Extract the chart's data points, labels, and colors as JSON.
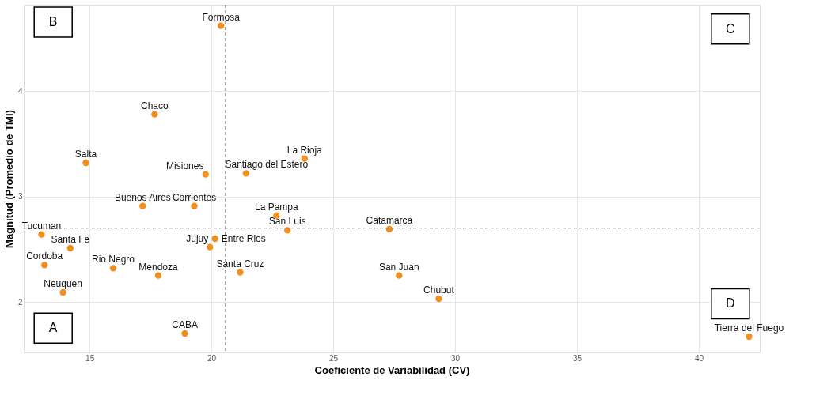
{
  "chart_data": {
    "type": "scatter",
    "xlabel": "Coeficiente de Variabilidad (CV)",
    "ylabel": "Magnitud (Promedio de TMI)",
    "x": [
      20.39,
      17.67,
      14.85,
      19.76,
      21.42,
      23.82,
      17.18,
      19.3,
      22.67,
      23.12,
      27.3,
      13.03,
      14.21,
      20.15,
      19.94,
      13.15,
      15.97,
      17.82,
      21.18,
      27.7,
      13.91,
      29.33,
      18.91,
      42.06
    ],
    "series": [
      {
        "color": "#f28e1c",
        "values": [
          4.62,
          3.78,
          3.32,
          3.21,
          3.22,
          3.36,
          2.91,
          2.91,
          2.82,
          2.68,
          2.69,
          2.64,
          2.51,
          2.6,
          2.52,
          2.35,
          2.32,
          2.25,
          2.28,
          2.25,
          2.09,
          2.03,
          1.7,
          1.67
        ]
      }
    ],
    "xlim": [
      12.3,
      42.5
    ],
    "ylim": [
      1.52,
      4.82
    ],
    "xticks": [
      15,
      20,
      25,
      30,
      35,
      40
    ],
    "yticks": [
      2,
      3,
      4
    ],
    "grid": true,
    "marker": "circle",
    "ref_lines": [
      {
        "axis": "x",
        "value": 20.58,
        "line_style": "dashed",
        "color": "#555555"
      },
      {
        "axis": "y",
        "value": 2.7,
        "line_style": "dashed",
        "color": "#555555"
      }
    ],
    "annotations": [
      {
        "text": "Formosa",
        "x": 20.39,
        "y": 4.62
      },
      {
        "text": "Chaco",
        "x": 17.67,
        "y": 3.78
      },
      {
        "text": "Salta",
        "x": 14.85,
        "y": 3.32
      },
      {
        "text": "Misiones",
        "x": 19.76,
        "y": 3.21
      },
      {
        "text": "Santiago del Estero",
        "x": 21.42,
        "y": 3.22
      },
      {
        "text": "La Rioja",
        "x": 23.82,
        "y": 3.36
      },
      {
        "text": "Buenos Aires",
        "x": 17.18,
        "y": 2.91
      },
      {
        "text": "Corrientes",
        "x": 19.3,
        "y": 2.91
      },
      {
        "text": "La Pampa",
        "x": 22.67,
        "y": 2.82
      },
      {
        "text": "San Luis",
        "x": 23.12,
        "y": 2.68
      },
      {
        "text": "Catamarca",
        "x": 27.3,
        "y": 2.69
      },
      {
        "text": "Tucuman",
        "x": 13.03,
        "y": 2.64
      },
      {
        "text": "Santa Fe",
        "x": 14.21,
        "y": 2.51
      },
      {
        "text": "Entre Rios",
        "x": 20.15,
        "y": 2.6
      },
      {
        "text": "Jujuy",
        "x": 19.94,
        "y": 2.52
      },
      {
        "text": "Cordoba",
        "x": 13.15,
        "y": 2.35
      },
      {
        "text": "Rio Negro",
        "x": 15.97,
        "y": 2.32
      },
      {
        "text": "Mendoza",
        "x": 17.82,
        "y": 2.25
      },
      {
        "text": "Santa Cruz",
        "x": 21.18,
        "y": 2.28
      },
      {
        "text": "San Juan",
        "x": 27.7,
        "y": 2.25
      },
      {
        "text": "Neuquen",
        "x": 13.91,
        "y": 2.09
      },
      {
        "text": "Chubut",
        "x": 29.33,
        "y": 2.03
      },
      {
        "text": "CABA",
        "x": 18.91,
        "y": 1.7
      },
      {
        "text": "Tierra del Fuego",
        "x": 42.06,
        "y": 1.67
      },
      "A",
      "B",
      "C",
      "D"
    ]
  }
}
